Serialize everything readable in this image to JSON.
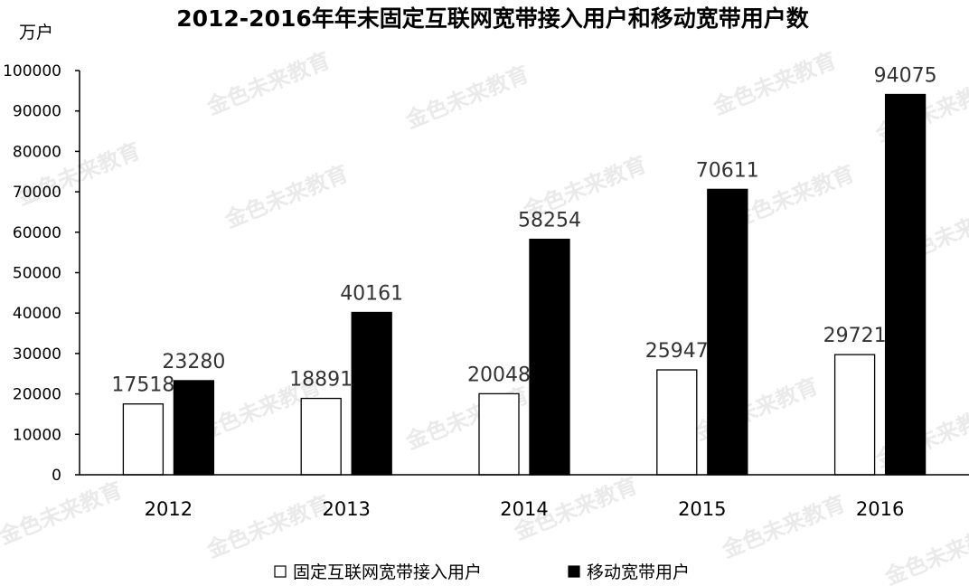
{
  "chart_data": {
    "type": "bar",
    "title": "2012-2016年年末固定互联网宽带接入用户和移动宽带用户数",
    "ylabel": "万户",
    "xlabel": "",
    "categories": [
      "2012",
      "2013",
      "2014",
      "2015",
      "2016"
    ],
    "series": [
      {
        "name": "固定互联网宽带接入用户",
        "values": [
          17518,
          18891,
          20048,
          25947,
          29721
        ],
        "color": "#ffffff"
      },
      {
        "name": "移动宽带用户",
        "values": [
          23280,
          40161,
          58254,
          70611,
          94075
        ],
        "color": "#000000"
      }
    ],
    "ylim": [
      0,
      100000
    ],
    "yticks": [
      0,
      10000,
      20000,
      30000,
      40000,
      50000,
      60000,
      70000,
      80000,
      90000,
      100000
    ],
    "grid": false,
    "legend": "bottom-center"
  },
  "watermark": "金色未来教育"
}
